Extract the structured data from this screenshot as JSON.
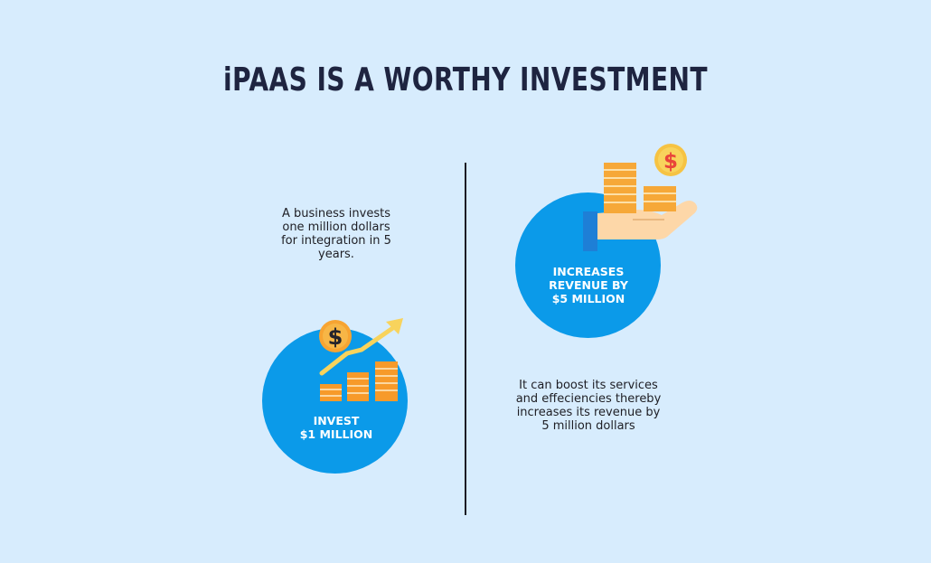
{
  "title": "iPAAS IS A WORTHY INVESTMENT",
  "left": {
    "description": "A business invests one million dollars for integration in 5 years.",
    "circle_label_line1": "INVEST",
    "circle_label_line2": "$1 MILLION",
    "coin_symbol": "$"
  },
  "right": {
    "description": "It can boost its services and effeciencies thereby increases its revenue by 5 million dollars",
    "circle_label_line1": "INCREASES",
    "circle_label_line2": "REVENUE BY",
    "circle_label_line3": "$5 MILLION",
    "coin_symbol": "$"
  },
  "colors": {
    "background": "#d7ecfd",
    "circle": "#0b9ae9",
    "title": "#1e2440",
    "coin": "#f6c343",
    "bar": "#f79a2a",
    "arrow": "#f8d35c",
    "hand": "#fdd7a8",
    "sleeve": "#1e7fd6"
  },
  "icons": [
    "chart-growth-icon",
    "dollar-coin-icon",
    "hand-coins-icon"
  ]
}
